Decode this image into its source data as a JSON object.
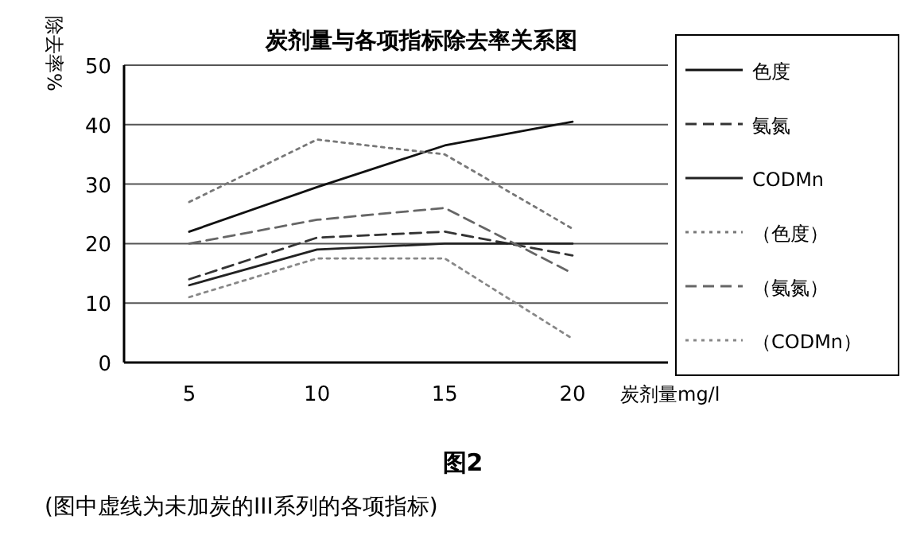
{
  "chart_data": {
    "type": "line",
    "title": "炭剂量与各项指标除去率关系图",
    "xlabel": "炭剂量mg/l",
    "ylabel": "除去率%",
    "categories": [
      "5",
      "10",
      "15",
      "20"
    ],
    "ylim": [
      0,
      50
    ],
    "yticks": [
      0,
      10,
      20,
      30,
      40,
      50
    ],
    "grid": "y",
    "legend": "right",
    "marker": "none",
    "series": [
      {
        "name": "色度",
        "color": "#111111",
        "line_style": "solid",
        "values": [
          22,
          29.5,
          36.5,
          40.5
        ]
      },
      {
        "name": "氨氮",
        "color": "#333333",
        "line_style": "dashed",
        "values": [
          14,
          21,
          22,
          18
        ]
      },
      {
        "name": "CODMn",
        "color": "#222222",
        "line_style": "solid",
        "values": [
          13,
          19,
          20,
          20
        ]
      },
      {
        "name": "（色度）",
        "color": "#777777",
        "line_style": "dotted",
        "values": [
          27,
          37.5,
          35,
          22.5
        ]
      },
      {
        "name": "（氨氮）",
        "color": "#666666",
        "line_style": "dashed",
        "values": [
          20,
          24,
          26,
          15
        ]
      },
      {
        "name": "（CODMn）",
        "color": "#888888",
        "line_style": "dotted",
        "values": [
          11,
          17.5,
          17.5,
          4
        ]
      }
    ],
    "annotations": [
      "图2",
      "(图中虚线为未加炭的III系列的各项指标)"
    ]
  }
}
